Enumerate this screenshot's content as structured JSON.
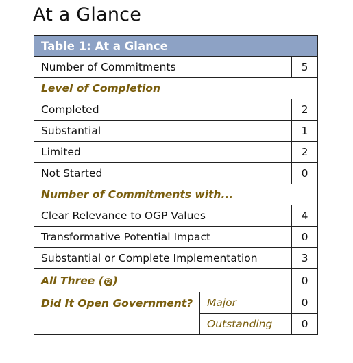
{
  "heading": "At a Glance",
  "table": {
    "title": "Table 1: At a Glance",
    "number_of_commitments": {
      "label": "Number of Commitments",
      "value": "5"
    },
    "level_of_completion_header": "Level of Completion",
    "completion": [
      {
        "label": "Completed",
        "value": "2"
      },
      {
        "label": "Substantial",
        "value": "1"
      },
      {
        "label": "Limited",
        "value": "2"
      },
      {
        "label": "Not Started",
        "value": "0"
      }
    ],
    "commitments_with_header": "Number of Commitments with...",
    "commitments_with": [
      {
        "label": "Clear Relevance to OGP Values",
        "value": "4"
      },
      {
        "label": "Transformative Potential Impact",
        "value": "0"
      },
      {
        "label": "Substantial or Complete Implementation",
        "value": "3"
      }
    ],
    "all_three": {
      "label_prefix": "All Three (",
      "icon_glyph": "✪",
      "label_suffix": ")",
      "value": "0"
    },
    "open_government": {
      "label": "Did It Open Government?",
      "major": {
        "label": "Major",
        "value": "0"
      },
      "outstanding": {
        "label": "Outstanding",
        "value": "0"
      }
    }
  },
  "colors": {
    "header_bg": "#8da2c5",
    "accent_gold": "#7a5e0e"
  },
  "icons": {
    "all_three_badge": "star-badge-icon"
  }
}
